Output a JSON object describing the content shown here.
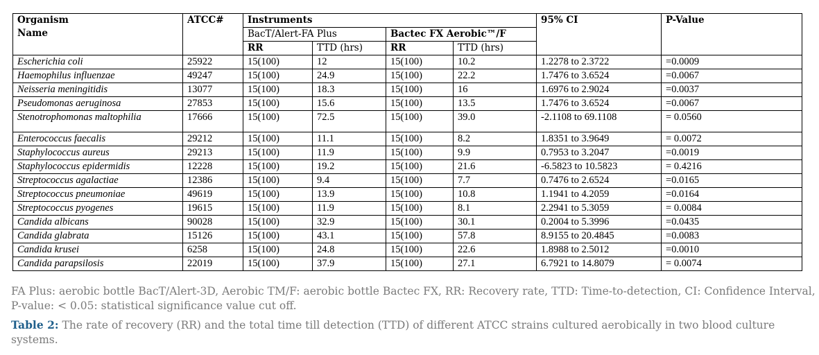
{
  "header": {
    "organism": "Organism",
    "organism_line2": "Name",
    "atcc": "ATCC#",
    "instruments": "Instruments",
    "ci": "95% CI",
    "pvalue": "P-Value",
    "bact": "BacT/Alert-FA Plus",
    "bactec": "Bactec FX Aerobic™/F",
    "rr": "RR",
    "ttd": "TTD (hrs)"
  },
  "rows": [
    {
      "organism": "Escherichia coli",
      "atcc": "25922",
      "rr1": "15(100)",
      "ttd1": "12",
      "rr2": "15(100)",
      "ttd2": "10.2",
      "ci": "1.2278 to 2.3722",
      "p": "=0.0009"
    },
    {
      "organism": "Haemophilus influenzae",
      "atcc": "49247",
      "rr1": "15(100)",
      "ttd1": "24.9",
      "rr2": "15(100)",
      "ttd2": "22.2",
      "ci": "1.7476 to 3.6524",
      "p": "=0.0067"
    },
    {
      "organism": "Neisseria meningitidis",
      "atcc": "13077",
      "rr1": "15(100)",
      "ttd1": "18.3",
      "rr2": "15(100)",
      "ttd2": "16",
      "ci": "1.6976 to 2.9024",
      "p": "=0.0037"
    },
    {
      "organism": "Pseudomonas aeruginosa",
      "atcc": "27853",
      "rr1": "15(100)",
      "ttd1": "15.6",
      "rr2": "15(100)",
      "ttd2": "13.5",
      "ci": "1.7476 to 3.6524",
      "p": "=0.0067"
    },
    {
      "organism": "Stenotrophomonas maltophilia",
      "atcc": "17666",
      "rr1": "15(100)",
      "ttd1": "72.5",
      "rr2": "15(100)",
      "ttd2": "39.0",
      "ci": "-2.1108 to 69.1108",
      "p": "= 0.0560"
    },
    {
      "organism": "Enterococcus faecalis",
      "atcc": "29212",
      "rr1": "15(100)",
      "ttd1": "11.1",
      "rr2": "15(100)",
      "ttd2": "8.2",
      "ci": "1.8351 to 3.9649",
      "p": "= 0.0072"
    },
    {
      "organism": "Staphylococcus aureus",
      "atcc": "29213",
      "rr1": "15(100)",
      "ttd1": "11.9",
      "rr2": "15(100)",
      "ttd2": "9.9",
      "ci": "0.7953 to 3.2047",
      "p": "=0.0019"
    },
    {
      "organism": "Staphylococcus epidermidis",
      "atcc": "12228",
      "rr1": "15(100)",
      "ttd1": "19.2",
      "rr2": "15(100)",
      "ttd2": "21.6",
      "ci": "-6.5823 to 10.5823",
      "p": "= 0.4216"
    },
    {
      "organism": "Streptococcus agalactiae",
      "atcc": "12386",
      "rr1": "15(100)",
      "ttd1": "9.4",
      "rr2": "15(100)",
      "ttd2": "7.7",
      "ci": "0.7476 to 2.6524",
      "p": "=0.0165"
    },
    {
      "organism": "Streptococcus pneumoniae",
      "atcc": "49619",
      "rr1": "15(100)",
      "ttd1": "13.9",
      "rr2": "15(100)",
      "ttd2": "10.8",
      "ci": "1.1941 to 4.2059",
      "p": "=0.0164"
    },
    {
      "organism": "Streptococcus pyogenes",
      "atcc": "19615",
      "rr1": "15(100)",
      "ttd1": "11.9",
      "rr2": "15(100)",
      "ttd2": "8.1",
      "ci": "2.2941 to 5.3059",
      "p": "= 0.0084"
    },
    {
      "organism": "Candida albicans",
      "atcc": "90028",
      "rr1": "15(100)",
      "ttd1": "32.9",
      "rr2": "15(100)",
      "ttd2": "30.1",
      "ci": "0.2004 to 5.3996",
      "p": "=0.0435"
    },
    {
      "organism": "Candida glabrata",
      "atcc": "15126",
      "rr1": "15(100)",
      "ttd1": "43.1",
      "rr2": "15(100)",
      "ttd2": "57.8",
      "ci": "8.9155 to 20.4845",
      "p": "=0.0083"
    },
    {
      "organism": "Candida krusei",
      "atcc": "6258",
      "rr1": "15(100)",
      "ttd1": "24.8",
      "rr2": "15(100)",
      "ttd2": "22.6",
      "ci": "1.8988 to 2.5012",
      "p": "=0.0010"
    },
    {
      "organism": "Candida parapsilosis",
      "atcc": "22019",
      "rr1": "15(100)",
      "ttd1": "37.9",
      "rr2": "15(100)",
      "ttd2": "27.1",
      "ci": "6.7921 to 14.8079",
      "p": "= 0.0074"
    }
  ],
  "legend": "FA Plus: aerobic bottle BacT/Alert-3D, Aerobic TM/F: aerobic bottle Bactec FX, RR: Recovery rate, TTD: Time-to-detection, CI: Confidence Interval, P-value: < 0.05:  statistical significance value cut off.",
  "caption": {
    "label": "Table 2:",
    "text": " The rate of recovery (RR) and the total time till detection (TTD) of different ATCC strains cultured aerobically in two blood culture systems."
  }
}
